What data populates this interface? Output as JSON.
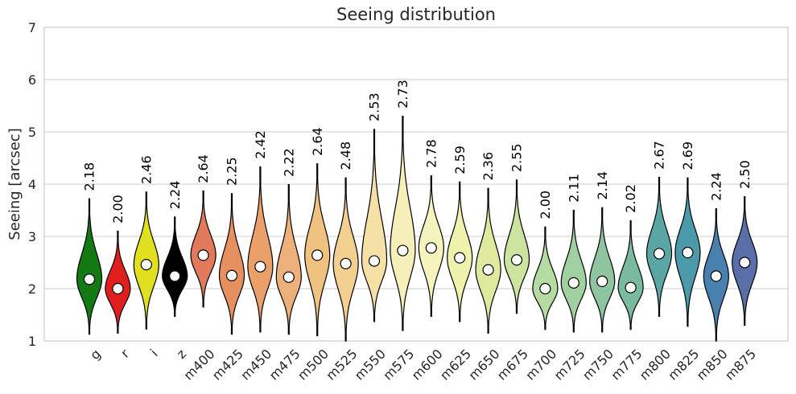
{
  "chart_data": {
    "type": "violin",
    "title": "Seeing distribution",
    "xlabel": "",
    "ylabel": "Seeing [arcsec]",
    "ylim": [
      1,
      7
    ],
    "yticks": [
      1,
      2,
      3,
      4,
      5,
      6,
      7
    ],
    "grid": true,
    "categories": [
      "g",
      "r",
      "i",
      "z",
      "m400",
      "m425",
      "m450",
      "m475",
      "m500",
      "m525",
      "m550",
      "m575",
      "m600",
      "m625",
      "m650",
      "m675",
      "m700",
      "m725",
      "m750",
      "m775",
      "m800",
      "m825",
      "m850",
      "m875"
    ],
    "medians": [
      2.18,
      2.0,
      2.46,
      2.24,
      2.64,
      2.25,
      2.42,
      2.22,
      2.64,
      2.48,
      2.53,
      2.73,
      2.78,
      2.59,
      2.36,
      2.55,
      2.0,
      2.11,
      2.14,
      2.02,
      2.67,
      2.69,
      2.24,
      2.5
    ],
    "median_labels": [
      "2.18",
      "2.00",
      "2.46",
      "2.24",
      "2.64",
      "2.25",
      "2.42",
      "2.22",
      "2.64",
      "2.48",
      "2.53",
      "2.73",
      "2.78",
      "2.59",
      "2.36",
      "2.55",
      "2.00",
      "2.11",
      "2.14",
      "2.02",
      "2.67",
      "2.69",
      "2.24",
      "2.50"
    ],
    "range_min": [
      1.13,
      1.15,
      1.23,
      1.47,
      1.65,
      1.13,
      1.17,
      1.13,
      1.1,
      1.0,
      1.37,
      1.2,
      1.47,
      1.37,
      1.15,
      1.53,
      1.22,
      1.17,
      1.17,
      1.22,
      1.47,
      1.28,
      1.0,
      1.3
    ],
    "range_max": [
      3.72,
      3.1,
      3.85,
      3.37,
      3.87,
      3.82,
      4.33,
      3.99,
      4.39,
      4.12,
      5.05,
      5.3,
      4.16,
      4.04,
      3.92,
      4.08,
      3.18,
      3.5,
      3.55,
      3.3,
      4.13,
      4.12,
      3.53,
      3.76
    ],
    "colors": [
      "#137a13",
      "#e01e1e",
      "#e0e020",
      "#000000",
      "#e07a5a",
      "#e69060",
      "#eaa068",
      "#eeb07a",
      "#f0c280",
      "#f3d090",
      "#f5e0a5",
      "#f7efba",
      "#f4f4bc",
      "#eef2ac",
      "#e0ea9e",
      "#cce4a0",
      "#b4dba2",
      "#a0d0a2",
      "#8ec4a0",
      "#79baa0",
      "#5aa6a4",
      "#4a9aaa",
      "#4a80b0",
      "#5a6ea8"
    ]
  }
}
